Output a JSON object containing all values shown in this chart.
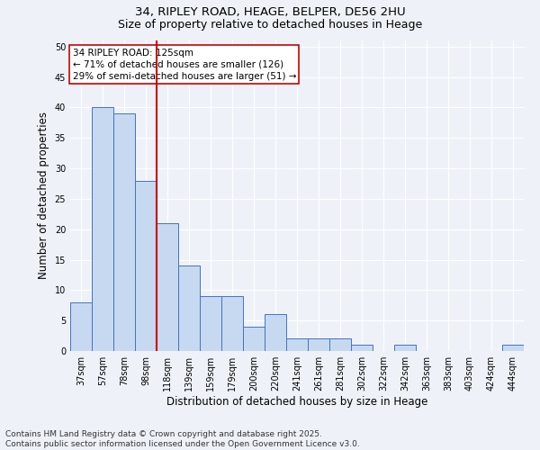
{
  "title_line1": "34, RIPLEY ROAD, HEAGE, BELPER, DE56 2HU",
  "title_line2": "Size of property relative to detached houses in Heage",
  "xlabel": "Distribution of detached houses by size in Heage",
  "ylabel": "Number of detached properties",
  "categories": [
    "37sqm",
    "57sqm",
    "78sqm",
    "98sqm",
    "118sqm",
    "139sqm",
    "159sqm",
    "179sqm",
    "200sqm",
    "220sqm",
    "241sqm",
    "261sqm",
    "281sqm",
    "302sqm",
    "322sqm",
    "342sqm",
    "363sqm",
    "383sqm",
    "403sqm",
    "424sqm",
    "444sqm"
  ],
  "values": [
    8,
    40,
    39,
    28,
    21,
    14,
    9,
    9,
    4,
    6,
    2,
    2,
    2,
    1,
    0,
    1,
    0,
    0,
    0,
    0,
    1
  ],
  "bar_color": "#c6d9f0",
  "bar_edge_color": "#4472c4",
  "vline_index": 4,
  "marker_label": "34 RIPLEY ROAD: 125sqm",
  "annotation_line1": "← 71% of detached houses are smaller (126)",
  "annotation_line2": "29% of semi-detached houses are larger (51) →",
  "vline_color": "#cc0000",
  "annotation_box_facecolor": "#ffffff",
  "annotation_box_edgecolor": "#cc0000",
  "ylim": [
    0,
    51
  ],
  "yticks": [
    0,
    5,
    10,
    15,
    20,
    25,
    30,
    35,
    40,
    45,
    50
  ],
  "footnote_line1": "Contains HM Land Registry data © Crown copyright and database right 2025.",
  "footnote_line2": "Contains public sector information licensed under the Open Government Licence v3.0.",
  "bg_color": "#eef2f8",
  "grid_color": "#ffffff",
  "title_fontsize": 9.5,
  "subtitle_fontsize": 9,
  "axis_label_fontsize": 8.5,
  "tick_fontsize": 7,
  "annotation_fontsize": 7.5,
  "footnote_fontsize": 6.5
}
